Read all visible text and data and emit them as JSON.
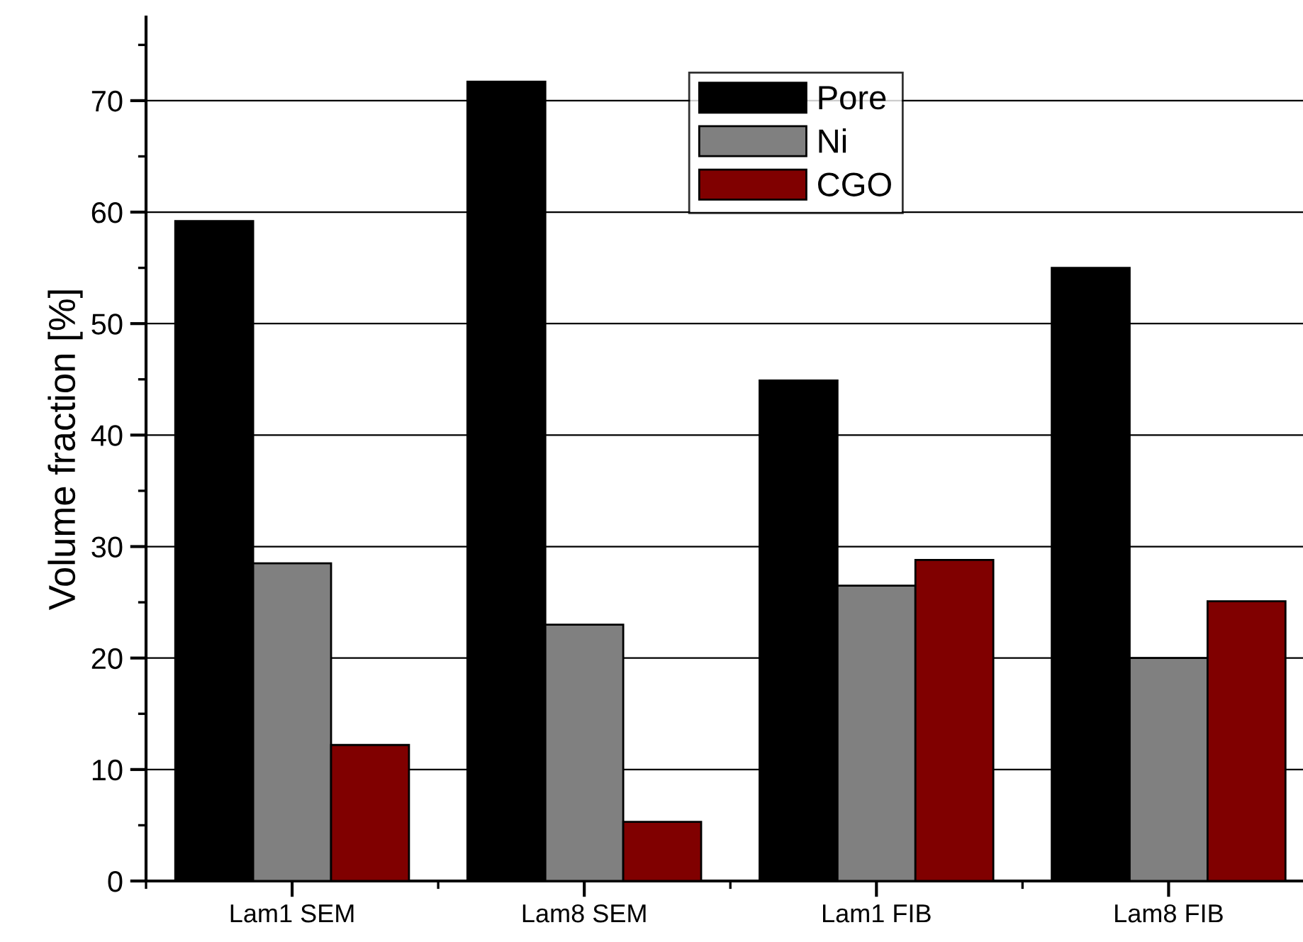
{
  "chart_data": {
    "type": "bar",
    "ylabel": "Volume fraction [%]",
    "categories": [
      "Lam1 SEM",
      "Lam8 SEM",
      "Lam1 FIB",
      "Lam8 FIB"
    ],
    "series": [
      {
        "name": "Pore",
        "color": "#000000",
        "values": [
          59.2,
          71.7,
          44.9,
          55.0
        ]
      },
      {
        "name": "Ni",
        "color": "#808080",
        "values": [
          28.5,
          23.0,
          26.5,
          20.0
        ]
      },
      {
        "name": "CGO",
        "color": "#800000",
        "values": [
          12.2,
          5.3,
          28.8,
          25.1
        ]
      }
    ],
    "ylim": [
      0,
      77.5
    ],
    "yticks": [
      0,
      10,
      20,
      30,
      40,
      50,
      60,
      70
    ],
    "grid": "y",
    "legend": "top center"
  }
}
